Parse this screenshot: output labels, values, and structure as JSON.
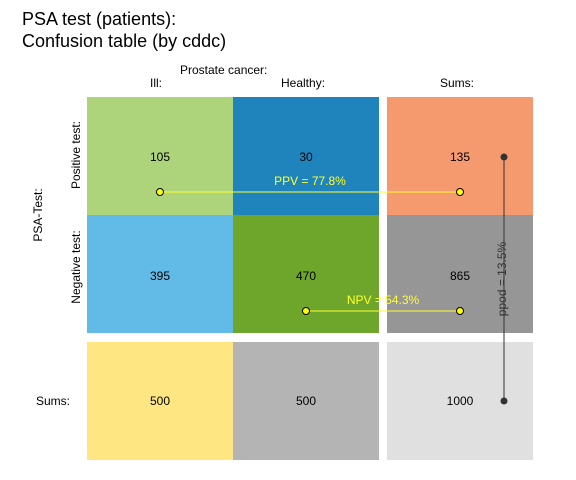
{
  "title": {
    "line1": "PSA test (patients):",
    "line2": "Confusion table (by cddc)"
  },
  "col_group_label": "Prostate cancer:",
  "col_labels": {
    "ill": "Ill:",
    "healthy": "Healthy:",
    "sums": "Sums:"
  },
  "row_group_label": "PSA-Test:",
  "row_labels": {
    "positive": "Positive test:",
    "negative": "Negative test:",
    "sums": "Sums:"
  },
  "cells": {
    "hi": {
      "value": "105",
      "color": "#add47a"
    },
    "fa": {
      "value": "30",
      "color": "#1f84bc"
    },
    "mi": {
      "value": "395",
      "color": "#62bae6"
    },
    "cr": {
      "value": "470",
      "color": "#6ea62c"
    },
    "sum_pos": {
      "value": "135",
      "color": "#f59a6e"
    },
    "sum_neg": {
      "value": "865",
      "color": "#969696"
    },
    "sum_ill": {
      "value": "500",
      "color": "#fee682"
    },
    "sum_healthy": {
      "value": "500",
      "color": "#b4b4b4"
    },
    "total": {
      "value": "1000",
      "color": "#e0e0e0"
    }
  },
  "metrics": {
    "ppv": "PPV = 77.8%",
    "npv": "NPV = 54.3%",
    "ppod": "ppod = 13.5%"
  },
  "colors": {
    "metric_line": "#ffff33",
    "point_fill": "#ffff00",
    "ppod_line": "#333333"
  }
}
